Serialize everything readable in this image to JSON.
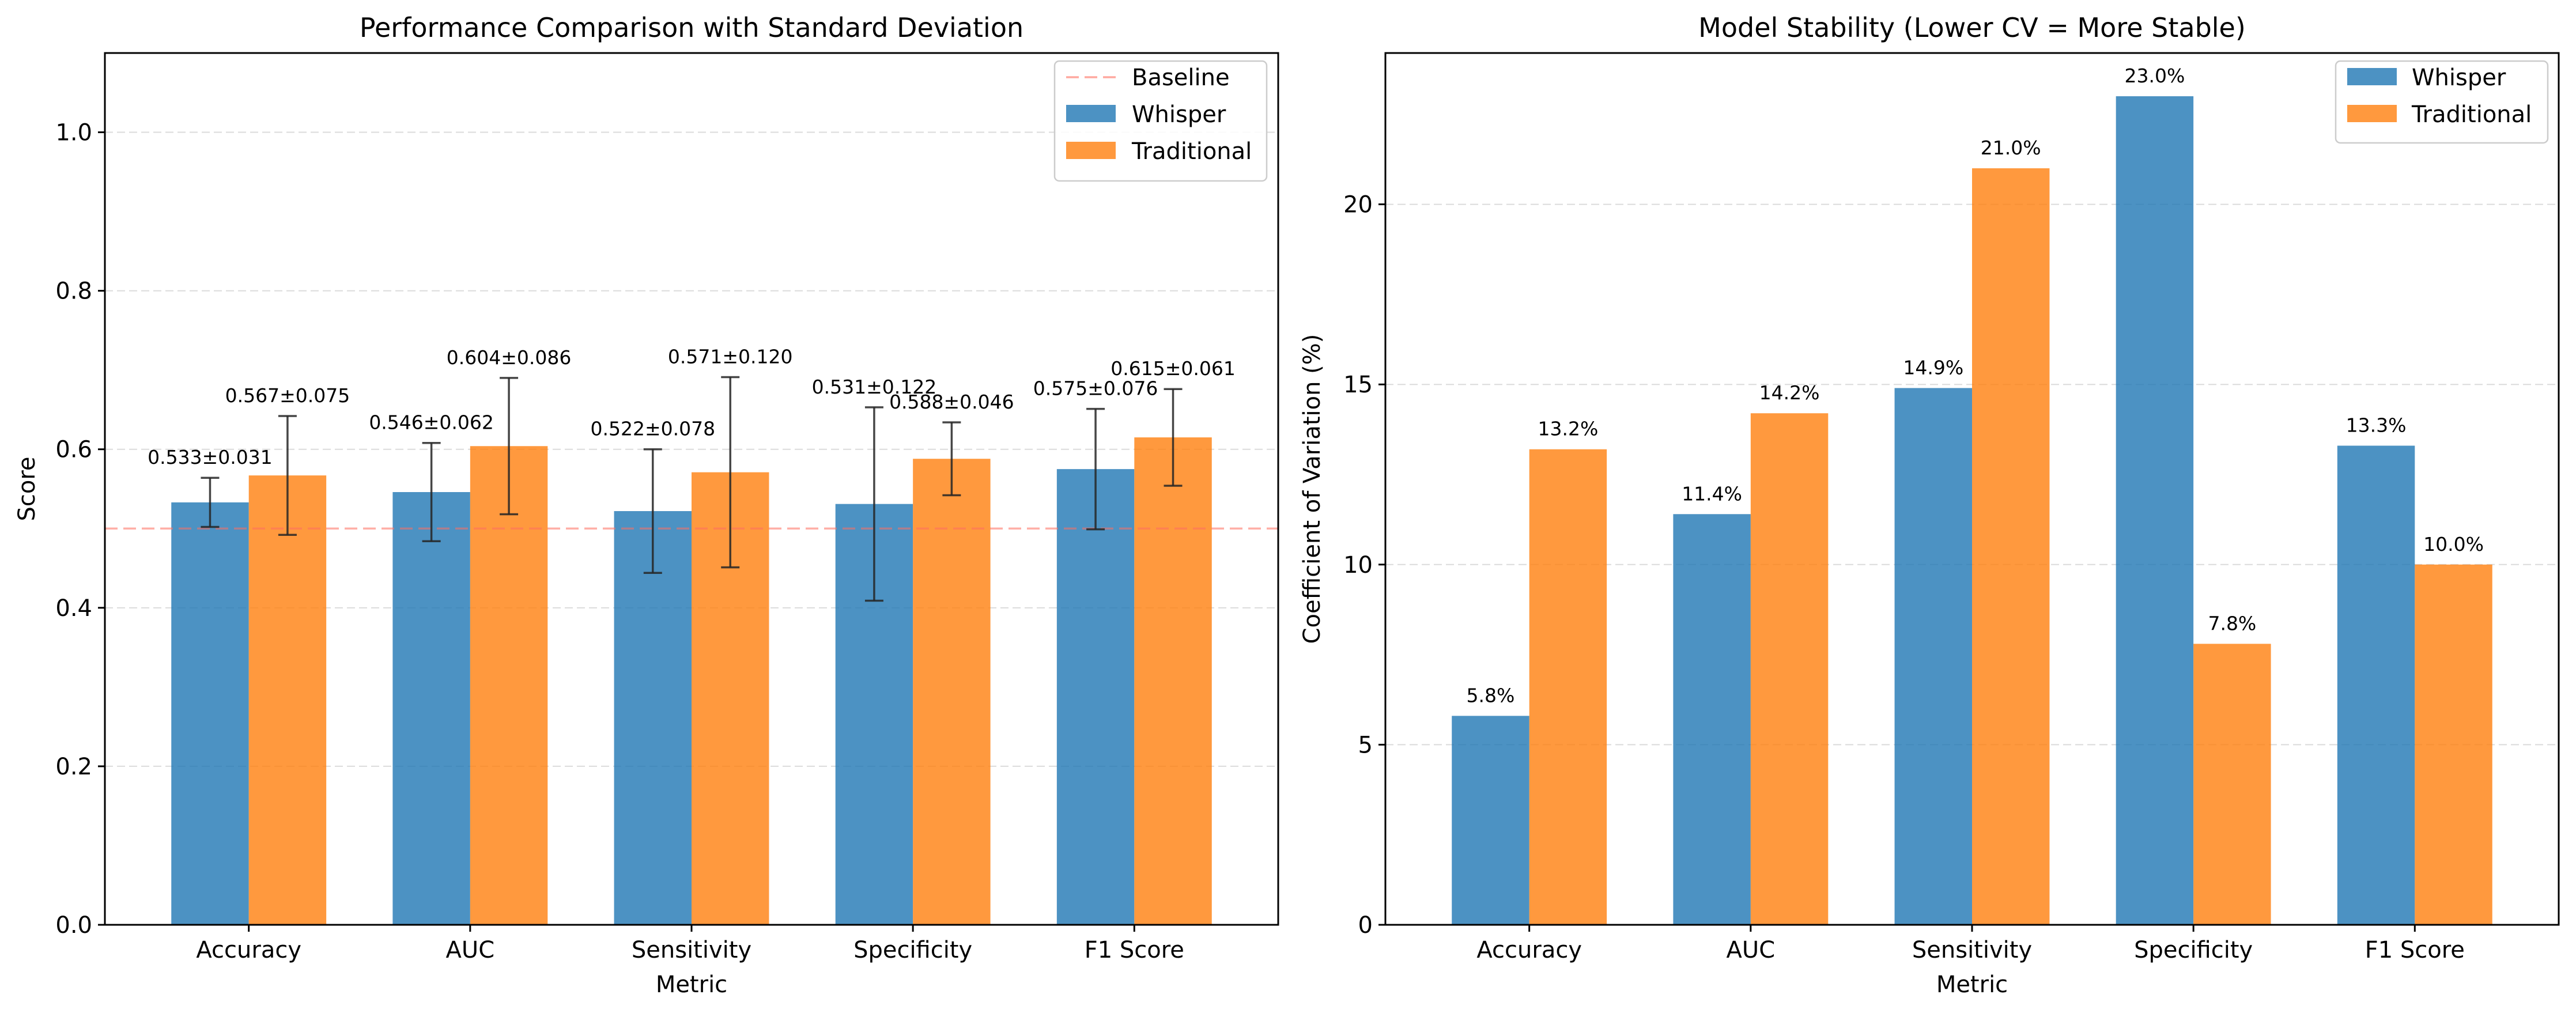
{
  "chart_data": [
    {
      "type": "bar",
      "title": "Performance Comparison with Standard Deviation",
      "xlabel": "Metric",
      "ylabel": "Score",
      "ylim": [
        0,
        1.1
      ],
      "yticks": [
        0.0,
        0.2,
        0.4,
        0.6,
        0.8,
        1.0
      ],
      "ytick_labels": [
        "0.0",
        "0.2",
        "0.4",
        "0.6",
        "0.8",
        "1.0"
      ],
      "categories": [
        "Accuracy",
        "AUC",
        "Sensitivity",
        "Specificity",
        "F1 Score"
      ],
      "grid": "y-dashed",
      "legend": "top-right",
      "baseline": {
        "name": "Baseline",
        "value": 0.5,
        "color": "#ff6f61"
      },
      "series": [
        {
          "name": "Whisper",
          "color": "#1f77b4",
          "values": [
            0.533,
            0.546,
            0.522,
            0.531,
            0.575
          ],
          "errors": [
            0.031,
            0.062,
            0.078,
            0.122,
            0.076
          ],
          "labels": [
            "0.533±0.031",
            "0.546±0.062",
            "0.522±0.078",
            "0.531±0.122",
            "0.575±0.076"
          ]
        },
        {
          "name": "Traditional",
          "color": "#ff7f0e",
          "values": [
            0.567,
            0.604,
            0.571,
            0.588,
            0.615
          ],
          "errors": [
            0.075,
            0.086,
            0.12,
            0.046,
            0.061
          ],
          "labels": [
            "0.567±0.075",
            "0.604±0.086",
            "0.571±0.120",
            "0.588±0.046",
            "0.615±0.061"
          ]
        }
      ]
    },
    {
      "type": "bar",
      "title": "Model Stability (Lower CV = More Stable)",
      "xlabel": "Metric",
      "ylabel": "Coefficient of Variation (%)",
      "ylim": [
        0,
        24.2
      ],
      "yticks": [
        0,
        5,
        10,
        15,
        20
      ],
      "ytick_labels": [
        "0",
        "5",
        "10",
        "15",
        "20"
      ],
      "categories": [
        "Accuracy",
        "AUC",
        "Sensitivity",
        "Specificity",
        "F1 Score"
      ],
      "grid": "y-dashed",
      "legend": "top-right",
      "series": [
        {
          "name": "Whisper",
          "color": "#1f77b4",
          "values": [
            5.8,
            11.4,
            14.9,
            23.0,
            13.3
          ],
          "labels": [
            "5.8%",
            "11.4%",
            "14.9%",
            "23.0%",
            "13.3%"
          ]
        },
        {
          "name": "Traditional",
          "color": "#ff7f0e",
          "values": [
            13.2,
            14.2,
            21.0,
            7.8,
            10.0
          ],
          "labels": [
            "13.2%",
            "14.2%",
            "21.0%",
            "7.8%",
            "10.0%"
          ]
        }
      ]
    }
  ]
}
